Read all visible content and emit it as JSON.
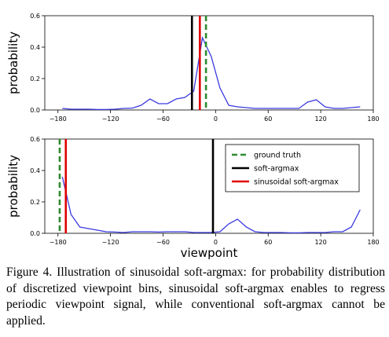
{
  "chart_data": [
    {
      "type": "line",
      "xlabel": "",
      "ylabel": "probability",
      "xlim": [
        -195,
        180
      ],
      "ylim": [
        0,
        0.6
      ],
      "xticks": [
        -180,
        -120,
        -60,
        0,
        60,
        120,
        180
      ],
      "yticks": [
        0.0,
        0.2,
        0.4,
        0.6
      ],
      "tick_labels_x": [
        "−180",
        "−120",
        "−60",
        "0",
        "60",
        "120",
        "180"
      ],
      "tick_labels_y": [
        "0.0",
        "0.2",
        "0.4",
        "0.6"
      ],
      "series": [
        {
          "color": "#3a3adf",
          "x": [
            -175,
            -165,
            -155,
            -145,
            -135,
            -125,
            -115,
            -105,
            -95,
            -85,
            -75,
            -65,
            -55,
            -45,
            -35,
            -25,
            -15,
            -5,
            5,
            15,
            25,
            35,
            45,
            55,
            65,
            75,
            85,
            95,
            105,
            115,
            125,
            135,
            145,
            155,
            165
          ],
          "y": [
            0.01,
            0.005,
            0.005,
            0.005,
            0.003,
            0.003,
            0.005,
            0.01,
            0.012,
            0.03,
            0.07,
            0.04,
            0.04,
            0.07,
            0.08,
            0.12,
            0.46,
            0.34,
            0.14,
            0.03,
            0.02,
            0.015,
            0.01,
            0.01,
            0.01,
            0.01,
            0.01,
            0.01,
            0.05,
            0.065,
            0.02,
            0.01,
            0.01,
            0.015,
            0.02
          ]
        }
      ],
      "vlines": [
        {
          "x": -27,
          "color": "#000000",
          "style": "solid"
        },
        {
          "x": -18,
          "color": "#e00000",
          "style": "solid"
        },
        {
          "x": -11,
          "color": "#2e8b2e",
          "style": "dashed"
        }
      ]
    },
    {
      "type": "line",
      "xlabel": "viewpoint",
      "ylabel": "probability",
      "xlim": [
        -195,
        180
      ],
      "ylim": [
        0,
        0.6
      ],
      "xticks": [
        -180,
        -120,
        -60,
        0,
        60,
        120,
        180
      ],
      "yticks": [
        0.0,
        0.2,
        0.4,
        0.6
      ],
      "tick_labels_x": [
        "−180",
        "−120",
        "−60",
        "0",
        "60",
        "120",
        "180"
      ],
      "tick_labels_y": [
        "0.0",
        "0.2",
        "0.4",
        "0.6"
      ],
      "series": [
        {
          "color": "#3a3adf",
          "x": [
            -175,
            -165,
            -155,
            -145,
            -135,
            -125,
            -115,
            -105,
            -95,
            -85,
            -75,
            -65,
            -55,
            -45,
            -35,
            -25,
            -15,
            -5,
            5,
            15,
            25,
            35,
            45,
            55,
            65,
            75,
            85,
            95,
            105,
            115,
            125,
            135,
            145,
            155,
            165
          ],
          "y": [
            0.36,
            0.12,
            0.04,
            0.03,
            0.02,
            0.01,
            0.008,
            0.005,
            0.01,
            0.01,
            0.01,
            0.008,
            0.01,
            0.01,
            0.01,
            0.005,
            0.005,
            0.005,
            0.01,
            0.06,
            0.09,
            0.04,
            0.01,
            0.005,
            0.005,
            0.005,
            0.003,
            0.003,
            0.005,
            0.005,
            0.005,
            0.01,
            0.01,
            0.04,
            0.15
          ]
        }
      ],
      "vlines": [
        {
          "x": -178,
          "color": "#2e8b2e",
          "style": "dashed"
        },
        {
          "x": -171,
          "color": "#e00000",
          "style": "solid"
        },
        {
          "x": -3,
          "color": "#000000",
          "style": "solid"
        }
      ],
      "legend": {
        "position": "top-right",
        "entries": [
          {
            "label": "ground truth",
            "color": "#2e8b2e",
            "style": "dashed"
          },
          {
            "label": "soft-argmax",
            "color": "#000000",
            "style": "solid"
          },
          {
            "label": "sinusoidal soft-argmax",
            "color": "#e00000",
            "style": "solid"
          }
        ]
      }
    }
  ],
  "caption": "Figure 4. Illustration of sinusoidal soft-argmax: for probability distribution of discretized viewpoint bins, sinusoidal soft-argmax enables to regress periodic viewpoint signal, while conventional soft-argmax cannot be applied."
}
